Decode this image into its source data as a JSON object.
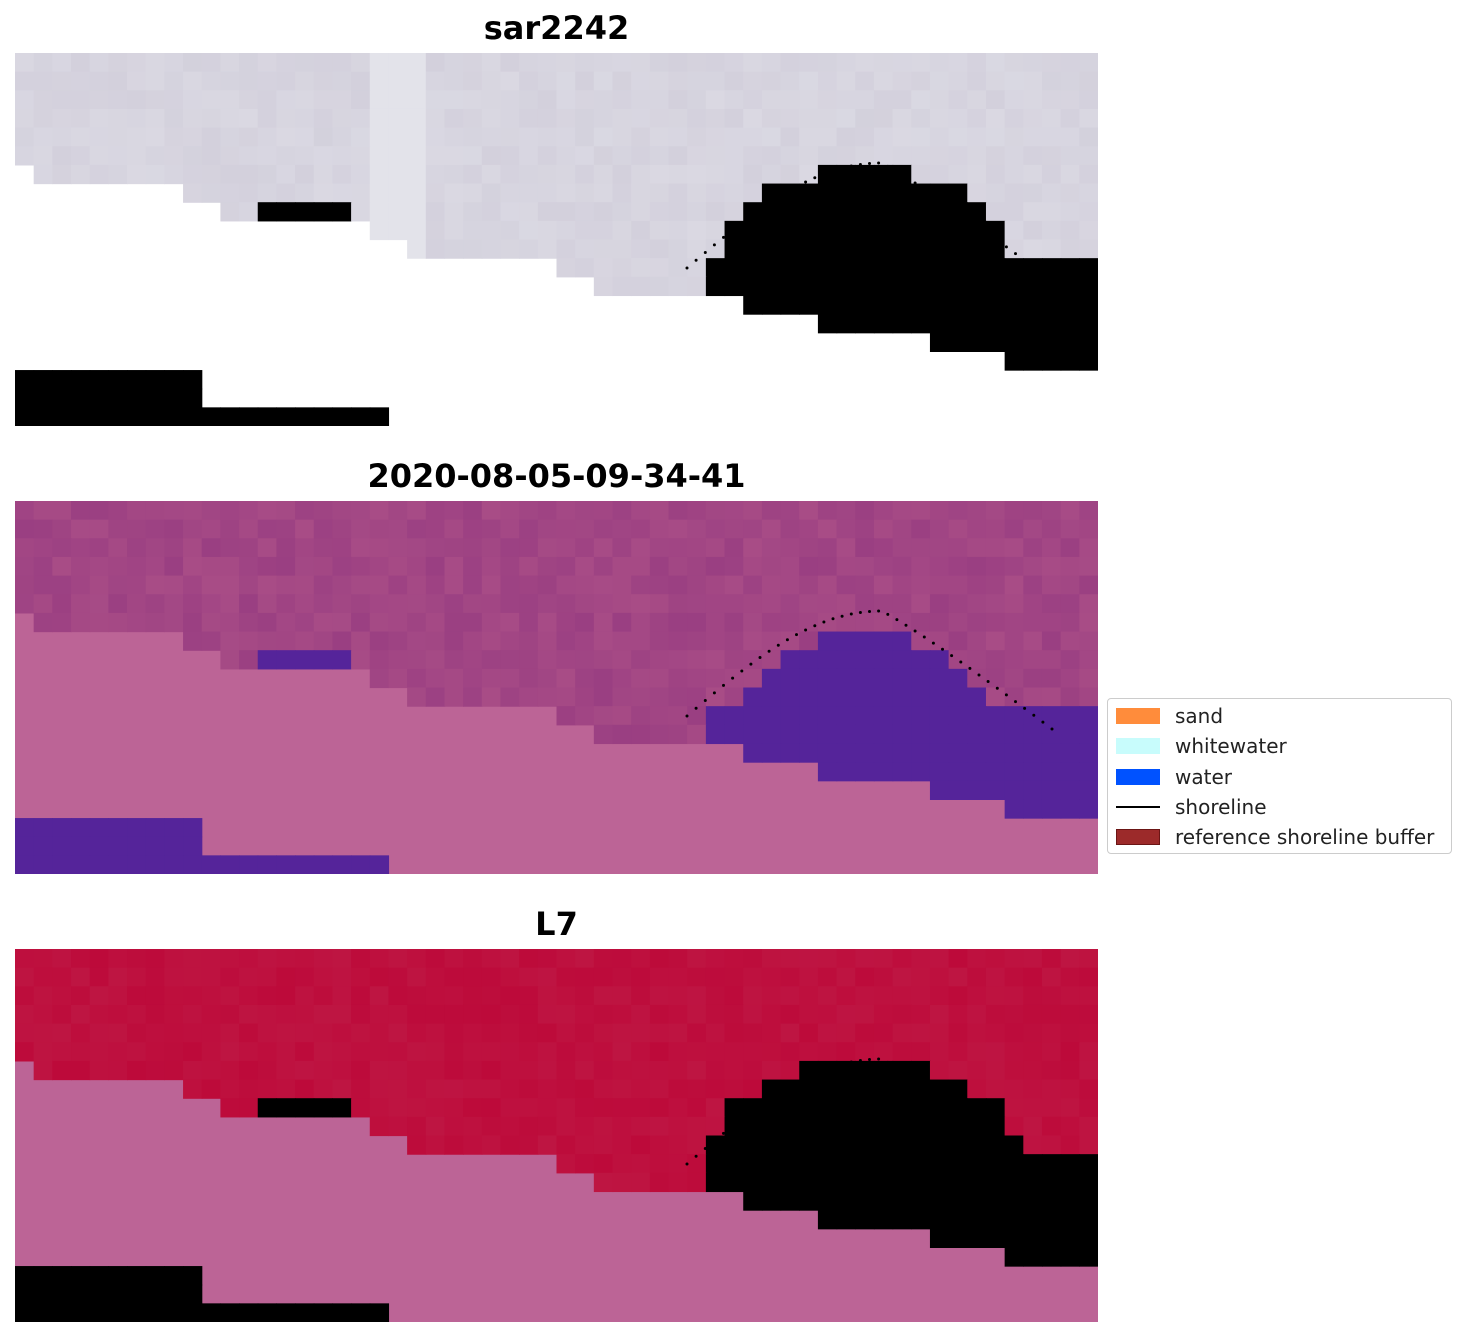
{
  "panels": [
    {
      "title": "sar2242",
      "image": "satellite-rgb-image"
    },
    {
      "title": "2020-08-05-09-34-41",
      "image": "classified-image"
    },
    {
      "title": "L7",
      "image": "index-image"
    }
  ],
  "legend": {
    "items": [
      {
        "label": "sand",
        "color": "#ff8c3b",
        "kind": "patch"
      },
      {
        "label": "whitewater",
        "color": "#c8fcfc",
        "kind": "patch"
      },
      {
        "label": "water",
        "color": "#0052ff",
        "kind": "patch"
      },
      {
        "label": "shoreline",
        "color": "#000000",
        "kind": "line"
      },
      {
        "label": "reference shoreline buffer",
        "color": "#9c2a2a",
        "kind": "patch"
      }
    ]
  },
  "colors": {
    "land_mask": "#bc6496",
    "water_class": "#55249a",
    "index_high": "#bd0a3a",
    "index_low": "#6a0aa8",
    "sar_gray": "#d3d0dc",
    "sar_water": "#3f78b4"
  }
}
